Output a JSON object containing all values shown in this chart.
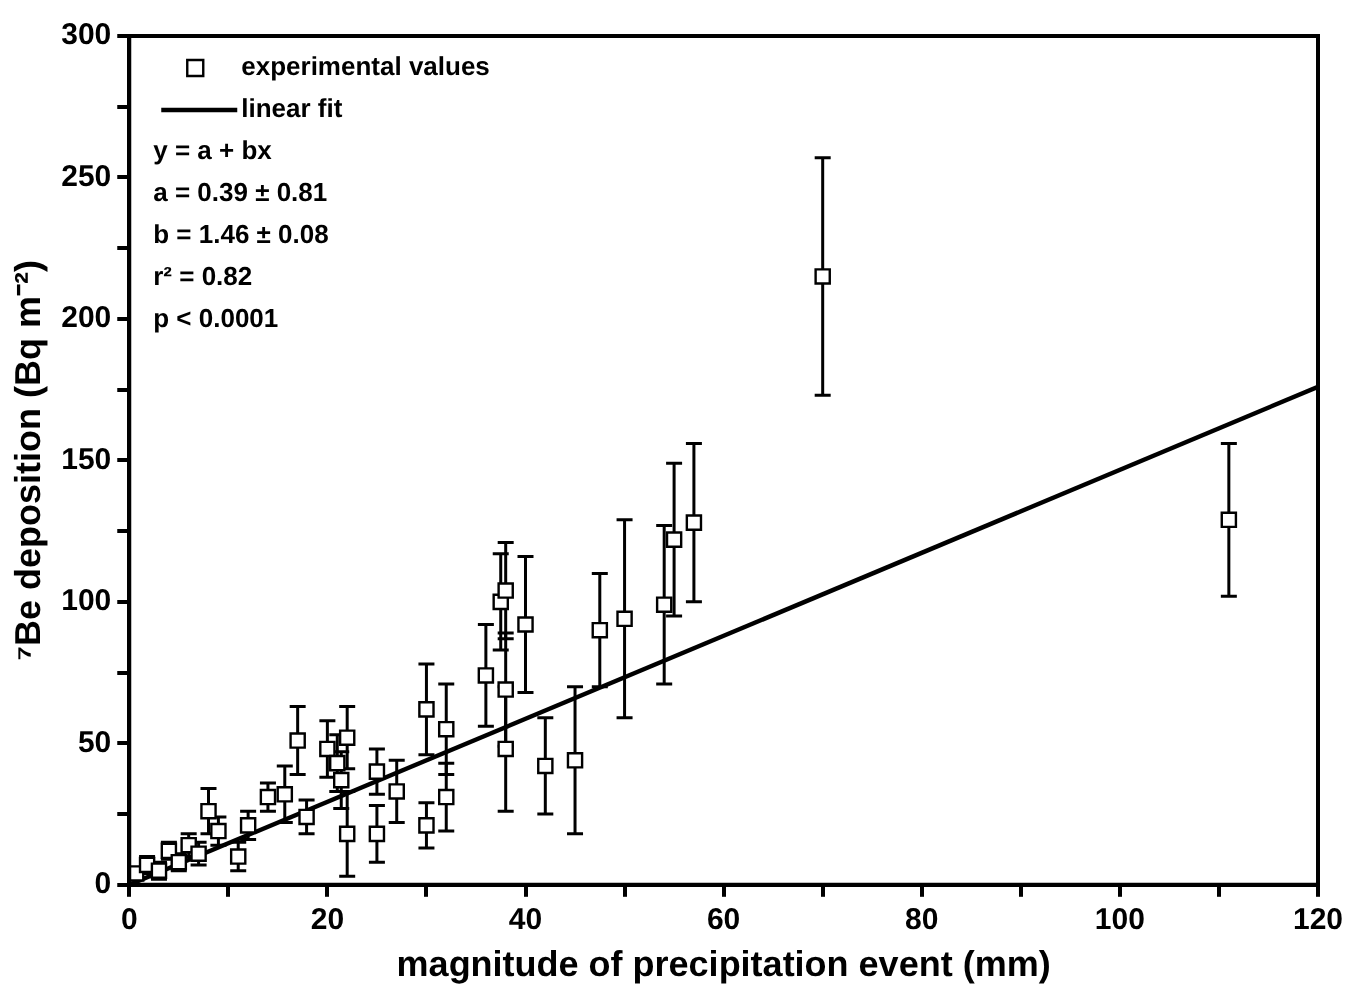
{
  "chart_data": {
    "type": "scatter",
    "xlabel": "magnitude of precipitation event (mm)",
    "ylabel": "⁷Be deposition (Bq m⁻²)",
    "xlim": [
      0,
      120
    ],
    "xticks": [
      0,
      {
        "value": 10,
        "label": null
      },
      20,
      {
        "value": 30,
        "label": null
      },
      40,
      {
        "value": 50,
        "label": null
      },
      60,
      {
        "value": 70,
        "label": null
      },
      80,
      {
        "value": 90,
        "label": null
      },
      100,
      {
        "value": 110,
        "label": null
      },
      120
    ],
    "ylim": [
      0,
      300
    ],
    "yticks": [
      0,
      {
        "value": 25,
        "label": null
      },
      50,
      {
        "value": 75,
        "label": null
      },
      100,
      {
        "value": 125,
        "label": null
      },
      150,
      {
        "value": 175,
        "label": null
      },
      200,
      {
        "value": 225,
        "label": null
      },
      250,
      {
        "value": 275,
        "label": null
      },
      300
    ],
    "grid": false,
    "legend": "top left",
    "series": [
      {
        "name": "experimental values",
        "marker": "square",
        "color": "#000000",
        "x": [
          0.7,
          1.8,
          3,
          4,
          5,
          6,
          7,
          8,
          9,
          11,
          12,
          14,
          15.7,
          17,
          17.9,
          20,
          21,
          21.4,
          22,
          22,
          25,
          25,
          27,
          30,
          30,
          32,
          32,
          36,
          37.5,
          38,
          38,
          38,
          40,
          42,
          45,
          47.5,
          50,
          54,
          55,
          57,
          70,
          111
        ],
        "values": [
          4,
          7,
          5,
          12,
          8,
          14,
          11,
          26,
          19,
          10,
          21,
          31,
          32,
          51,
          24,
          48,
          43,
          37,
          52,
          18,
          40,
          18,
          33,
          62,
          21,
          55,
          31,
          74,
          100,
          69,
          48,
          104,
          92,
          42,
          44,
          90,
          94,
          99,
          122,
          128,
          215,
          129
        ],
        "errors": [
          null,
          3,
          3,
          3,
          3,
          4,
          4,
          8,
          5,
          5,
          5,
          5,
          10,
          12,
          6,
          10,
          10,
          10,
          11,
          15,
          8,
          10,
          11,
          16,
          8,
          16,
          12,
          18,
          17,
          20,
          22,
          17,
          24,
          17,
          26,
          20,
          35,
          28,
          27,
          28,
          42,
          27
        ]
      },
      {
        "name": "linear fit",
        "type": "line",
        "marker": "none",
        "line_style": "solid",
        "color": "#000000",
        "x": [
          0,
          120
        ],
        "values": [
          0,
          176
        ]
      }
    ],
    "annotations": [
      "y = a + bx",
      "a = 0.39 ± 0.81",
      "b = 1.46 ± 0.08",
      "r² = 0.82",
      "p < 0.0001"
    ]
  }
}
